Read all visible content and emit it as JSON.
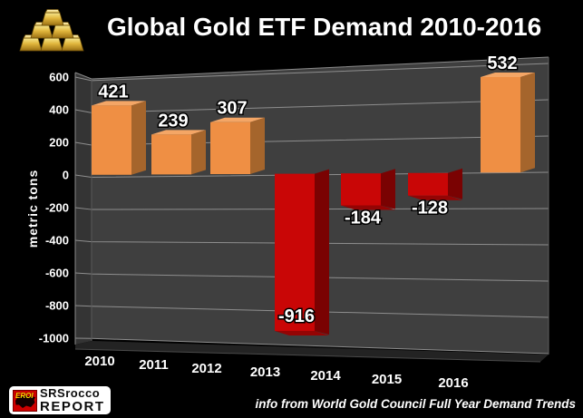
{
  "header": {
    "title": "Global Gold ETF Demand 2010-2016"
  },
  "chart_data": {
    "type": "bar",
    "title": "Global Gold ETF Demand 2010-2016",
    "categories": [
      "2010",
      "2011",
      "2012",
      "2013",
      "2014",
      "2015",
      "2016"
    ],
    "values": [
      421,
      239,
      307,
      -916,
      -184,
      -128,
      532
    ],
    "xlabel": "",
    "ylabel": "metric tons",
    "ylim": [
      -1000,
      600
    ],
    "yticks": [
      600,
      400,
      200,
      0,
      -200,
      -400,
      -600,
      -800,
      -1000
    ],
    "grid": true,
    "legend_position": "none",
    "style_3d": true,
    "colors": {
      "positive_front": "#EF8F44",
      "positive_side": "#A5652C",
      "positive_top": "#F4A666",
      "negative_front": "#C90606",
      "negative_side": "#7A0202",
      "negative_bottom": "#940404",
      "back_wall": "#3F3F3F",
      "side_wall": "#343434",
      "floor": "#232323",
      "gridline": "#8E8E8E",
      "label_text": "#FFFFFF",
      "label_outline": "#000000"
    }
  },
  "footer": {
    "source_note": "info from World Gold Council Full Year Demand Trends",
    "logo": {
      "badge": "EROI",
      "line1": "SRSrocco",
      "line2": "REPORT"
    }
  },
  "icons": {
    "gold_bars": "gold-bars-icon",
    "eroi_map": "usa-map-icon"
  }
}
